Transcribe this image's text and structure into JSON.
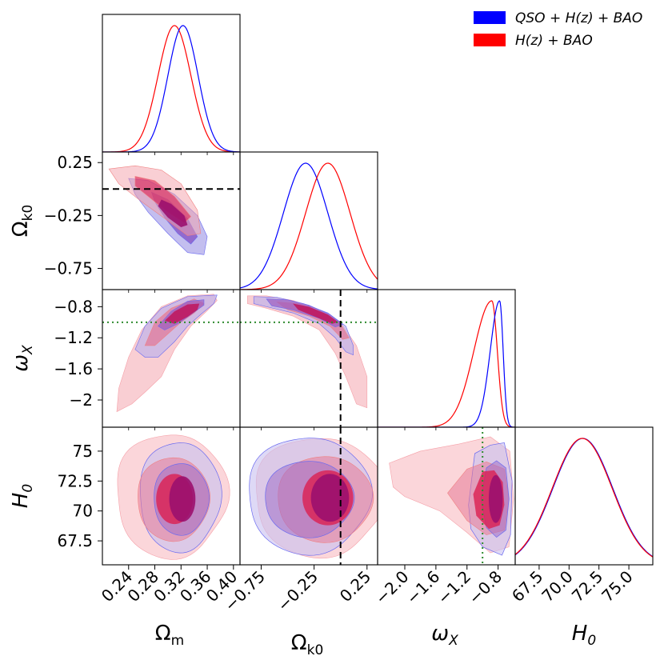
{
  "chart_data": {
    "type": "corner-plot",
    "parameters": [
      "Ωm",
      "Ωk0",
      "ωX",
      "H0"
    ],
    "axis_labels": {
      "Om": {
        "base": "Ω",
        "sub": "m"
      },
      "Ok": {
        "base": "Ω",
        "sub": "k0"
      },
      "wX": {
        "base": "ω",
        "sub": "X"
      },
      "H0": {
        "base": "H",
        "sub": "0"
      }
    },
    "ranges": {
      "Om": [
        0.2,
        0.41
      ],
      "Ok": [
        -0.95,
        0.35
      ],
      "wX": [
        -2.35,
        -0.58
      ],
      "H0": [
        65.5,
        77.0
      ]
    },
    "ticks": {
      "Om": [
        "0.24",
        "0.28",
        "0.32",
        "0.36",
        "0.40"
      ],
      "Ok": [
        "−0.75",
        "−0.25",
        "0.25"
      ],
      "wX_x": [
        "−2.0",
        "−1.6",
        "−1.2",
        "−0.8"
      ],
      "wX_y": [
        "−0.8",
        "−1.2",
        "−1.6",
        "−2"
      ],
      "H0": [
        "67.5",
        "70",
        "72.5",
        "75"
      ],
      "H0_x": [
        "67.5",
        "70.0",
        "72.5",
        "75.0"
      ]
    },
    "series": [
      {
        "name": "QSO + H(z) + BAO",
        "color": "#0000ff",
        "mean": {
          "Om": 0.323,
          "Ok": -0.33,
          "wX": -0.78,
          "H0": 71.2
        },
        "sigma": {
          "Om": 0.023,
          "Ok": 0.21,
          "wX": 0.11,
          "H0": 2.5
        }
      },
      {
        "name": "H(z) + BAO",
        "color": "#ff0000",
        "mean": {
          "Om": 0.31,
          "Ok": -0.12,
          "wX": -0.88,
          "H0": 71.0
        },
        "sigma": {
          "Om": 0.025,
          "Ok": 0.21,
          "wX": 0.22,
          "H0": 2.5
        }
      }
    ],
    "reference_lines": [
      {
        "param": "Ok",
        "value": 0.0,
        "style": "dashed",
        "color": "#000000"
      },
      {
        "param": "wX",
        "value": -1.0,
        "style": "dotted",
        "color": "#2e8b2e"
      }
    ],
    "legend": {
      "position": "top-right"
    }
  },
  "legend_labels": {
    "qso": "QSO + H(z) + BAO",
    "hz": "H(z) + BAO"
  }
}
